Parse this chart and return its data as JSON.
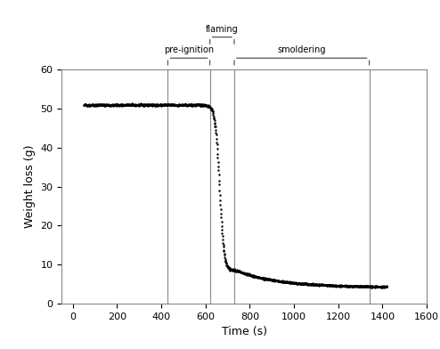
{
  "xlabel": "Time (s)",
  "ylabel": "Weight loss (g)",
  "xlim": [
    -50,
    1600
  ],
  "ylim": [
    0,
    60
  ],
  "xticks": [
    0,
    200,
    400,
    600,
    800,
    1000,
    1200,
    1400,
    1600
  ],
  "yticks": [
    0,
    10,
    20,
    30,
    40,
    50,
    60
  ],
  "vlines": [
    430,
    620,
    730,
    1340
  ],
  "vline_color": "#888888",
  "vline_lw": 0.8,
  "dot_color": "#000000",
  "dot_size": 3,
  "pre_ignition_x1": 430,
  "pre_ignition_x2": 620,
  "pre_ignition_label": "pre-ignition",
  "flaming_x1": 620,
  "flaming_x2": 730,
  "flaming_label": "flaming",
  "smoldering_x1": 730,
  "smoldering_x2": 1340,
  "smoldering_label": "smoldering",
  "plateau_y": 51.0,
  "plateau_start_x": 50,
  "plateau_end_x": 600,
  "drop_end_x": 740,
  "drop_end_y": 8.5,
  "smolder_end_x": 1420,
  "smolder_end_y": 4.2,
  "bracket_color": "#555555",
  "bracket_lw": 0.9,
  "fontsize_annot": 7,
  "fontsize_axis": 9,
  "fontsize_tick": 8
}
